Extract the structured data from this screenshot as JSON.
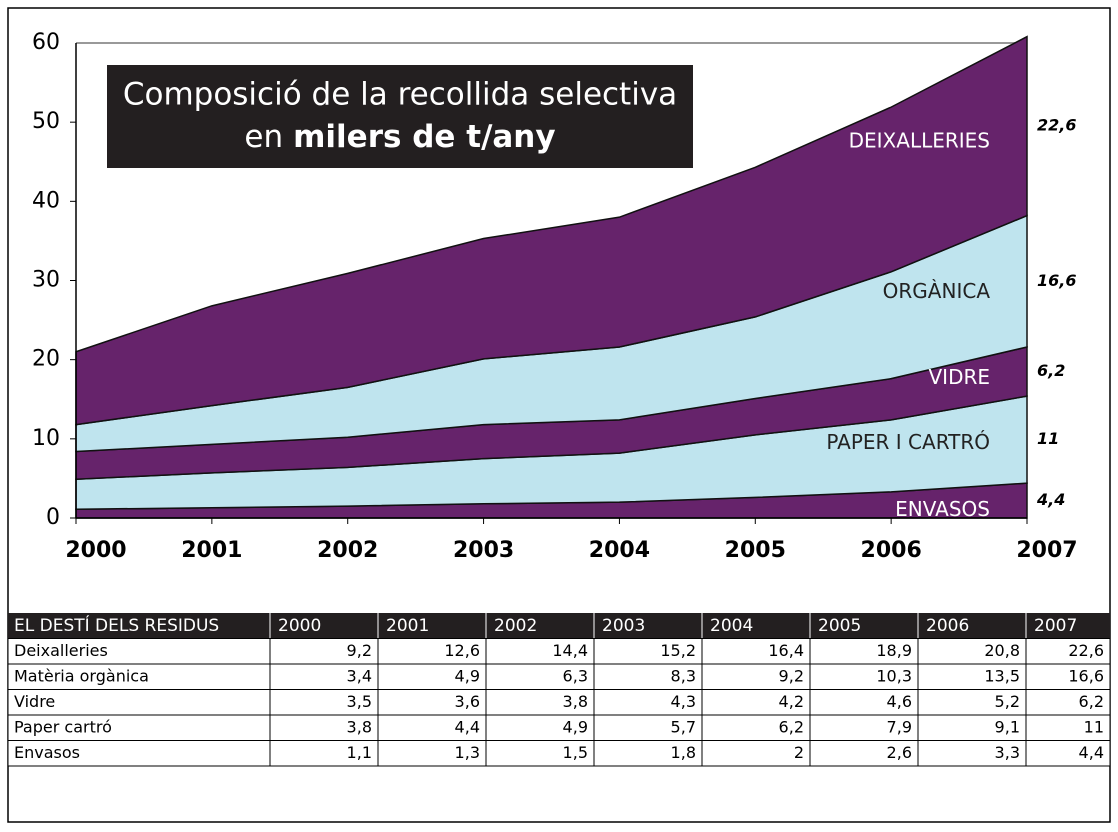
{
  "chart_data": {
    "type": "stacked_area",
    "title": {
      "line1": "Composició de la recollida selectiva",
      "line2_prefix": "en",
      "line2_bold": "milers de t/any"
    },
    "categories": [
      "2000",
      "2001",
      "2002",
      "2003",
      "2004",
      "2005",
      "2006",
      "2007"
    ],
    "series": [
      {
        "name": "Deixalleries",
        "label": "DEIXALLERIES",
        "color": "#66236b",
        "values": [
          9.2,
          12.6,
          14.4,
          15.2,
          16.4,
          18.9,
          20.8,
          22.6
        ],
        "value_labels": [
          "9,2",
          "12,6",
          "14,4",
          "15,2",
          "16,4",
          "18,9",
          "20,8",
          "22,6"
        ]
      },
      {
        "name": "Matèria orgànica",
        "label": "ORGÀNICA",
        "color": "#bfe4ee",
        "values": [
          3.4,
          4.9,
          6.3,
          8.3,
          9.2,
          10.3,
          13.5,
          16.6
        ],
        "value_labels": [
          "3,4",
          "4,9",
          "6,3",
          "8,3",
          "9,2",
          "10,3",
          "13,5",
          "16,6"
        ]
      },
      {
        "name": "Vidre",
        "label": "VIDRE",
        "color": "#66236b",
        "values": [
          3.5,
          3.6,
          3.8,
          4.3,
          4.2,
          4.6,
          5.2,
          6.2
        ],
        "value_labels": [
          "3,5",
          "3,6",
          "3,8",
          "4,3",
          "4,2",
          "4,6",
          "5,2",
          "6,2"
        ]
      },
      {
        "name": "Paper cartró",
        "label": "PAPER I CARTRÓ",
        "color": "#bfe4ee",
        "values": [
          3.8,
          4.4,
          4.9,
          5.7,
          6.2,
          7.9,
          9.1,
          11
        ],
        "value_labels": [
          "3,8",
          "4,4",
          "4,9",
          "5,7",
          "6,2",
          "7,9",
          "9,1",
          "11"
        ]
      },
      {
        "name": "Envasos",
        "label": "ENVASOS",
        "color": "#66236b",
        "values": [
          1.1,
          1.3,
          1.5,
          1.8,
          2,
          2.6,
          3.3,
          4.4
        ],
        "value_labels": [
          "1,1",
          "1,3",
          "1,5",
          "1,8",
          "2",
          "2,6",
          "3,3",
          "4,4"
        ]
      }
    ],
    "ylim": [
      0,
      60
    ],
    "yticks": [
      0,
      10,
      20,
      30,
      40,
      50,
      60
    ],
    "table_header": "EL DESTÍ DELS RESIDUS"
  }
}
